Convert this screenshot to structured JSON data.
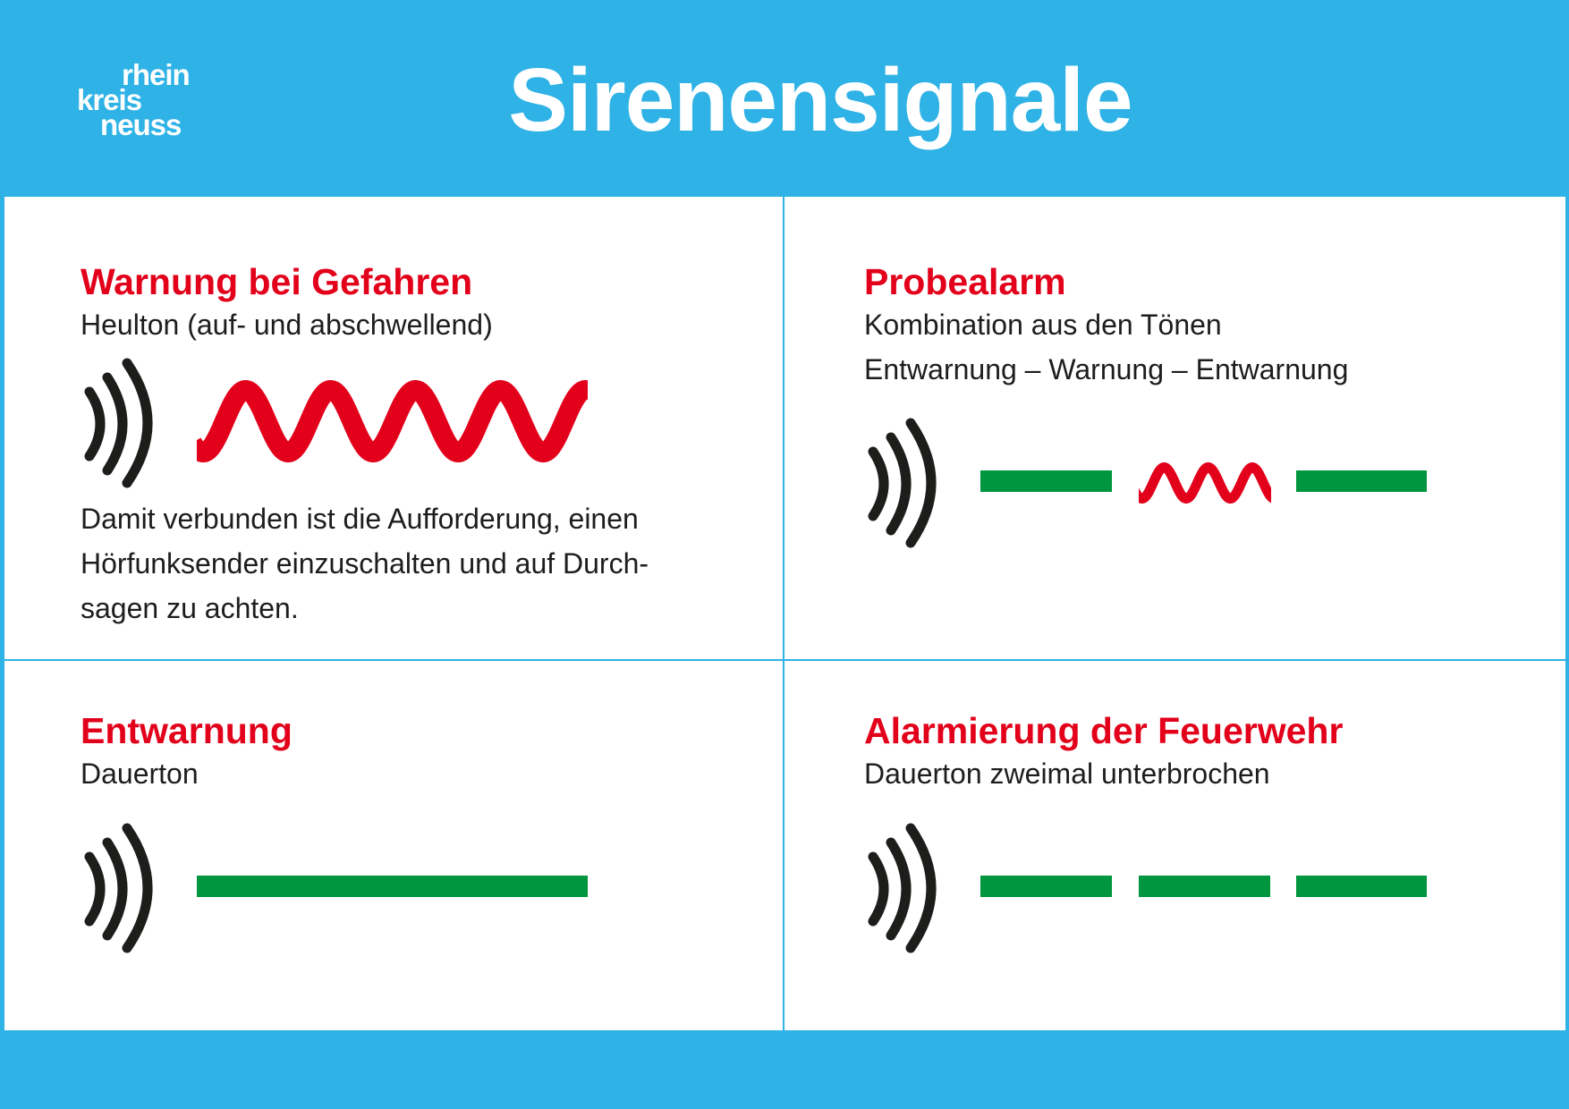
{
  "header": {
    "title": "Sirenensignale",
    "logo": [
      "rhein",
      "kreis",
      "neuss"
    ]
  },
  "colors": {
    "background": "#2fb2e6",
    "heading": "#e2001a",
    "steady_tone": "#009640",
    "wailing_tone": "#e2001a",
    "icon": "#1d1d1b"
  },
  "signals": [
    {
      "title": "Warnung bei Gefahren",
      "lines": [
        "Heulton (auf- und abschwellend)"
      ],
      "pattern": "wave",
      "note": [
        "Damit verbunden ist die Aufforderung, einen",
        "Hörfunksender einzuschalten und auf Durch-",
        "sagen zu achten."
      ]
    },
    {
      "title": "Probealarm",
      "lines": [
        "Kombination aus den Tönen",
        "Entwarnung – Warnung – Entwarnung"
      ],
      "pattern": "bar-wave-bar"
    },
    {
      "title": "Entwarnung",
      "lines": [
        "Dauerton"
      ],
      "pattern": "long-bar"
    },
    {
      "title": "Alarmierung der Feuerwehr",
      "lines": [
        "Dauerton zweimal unterbrochen"
      ],
      "pattern": "three-bars"
    }
  ]
}
